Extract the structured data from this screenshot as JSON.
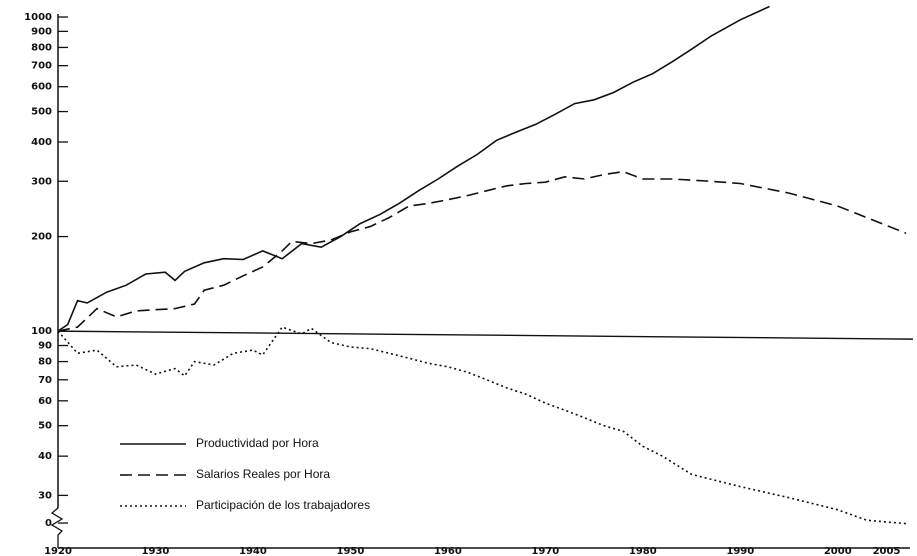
{
  "chart_data": {
    "type": "line",
    "log_y": true,
    "xlim": [
      1920,
      2007
    ],
    "ylim": [
      20.4,
      1000
    ],
    "xticks": [
      1920,
      1930,
      1940,
      1950,
      1960,
      1970,
      1980,
      1990,
      2000,
      2005
    ],
    "yticks": [
      1000,
      900,
      800,
      700,
      600,
      500,
      400,
      300,
      200,
      100,
      90,
      80,
      70,
      60,
      50,
      40,
      30,
      {
        "value": 24.5,
        "label": "0"
      }
    ],
    "reference_value": 100,
    "series": [
      {
        "name": "Productividad por Hora",
        "color": "#111111",
        "style": "solid",
        "x": [
          1920,
          1921,
          1922,
          1923,
          1925,
          1927,
          1929,
          1931,
          1932,
          1933,
          1935,
          1937,
          1939,
          1941,
          1942,
          1943,
          1945,
          1947,
          1949,
          1951,
          1953,
          1955,
          1957,
          1959,
          1961,
          1963,
          1965,
          1967,
          1969,
          1971,
          1973,
          1975,
          1977,
          1979,
          1981,
          1983,
          1985,
          1987,
          1990,
          1993
        ],
        "values": [
          100,
          105,
          125,
          123,
          133,
          140,
          152,
          154,
          145,
          155,
          165,
          170,
          169,
          180,
          175,
          170,
          190,
          185,
          200,
          220,
          235,
          255,
          280,
          305,
          335,
          365,
          405,
          430,
          455,
          490,
          530,
          545,
          575,
          620,
          660,
          720,
          790,
          870,
          980,
          1080
        ]
      },
      {
        "name": "Salarios Reales por Hora",
        "color": "#111111",
        "style": "dashed",
        "x": [
          1920,
          1922,
          1924,
          1926,
          1928,
          1930,
          1932,
          1934,
          1935,
          1937,
          1939,
          1941,
          1943,
          1944,
          1946,
          1948,
          1950,
          1952,
          1954,
          1956,
          1958,
          1960,
          1962,
          1964,
          1966,
          1968,
          1970,
          1972,
          1974,
          1976,
          1978,
          1980,
          1983,
          1987,
          1990,
          1995,
          2000,
          2007
        ],
        "values": [
          100,
          103,
          118,
          111,
          116,
          117,
          118,
          122,
          135,
          140,
          150,
          160,
          180,
          193,
          190,
          195,
          207,
          215,
          230,
          250,
          255,
          262,
          270,
          280,
          290,
          295,
          298,
          310,
          305,
          315,
          322,
          305,
          305,
          300,
          295,
          275,
          250,
          205
        ]
      },
      {
        "name": "Participación de los trabajadores",
        "color": "#111111",
        "style": "dotted",
        "x": [
          1920,
          1922,
          1924,
          1926,
          1928,
          1930,
          1932,
          1933,
          1934,
          1936,
          1938,
          1940,
          1941,
          1943,
          1945,
          1946,
          1948,
          1950,
          1952,
          1954,
          1956,
          1958,
          1960,
          1962,
          1964,
          1966,
          1968,
          1970,
          1972,
          1974,
          1976,
          1978,
          1980,
          1982,
          1985,
          1990,
          1995,
          2000,
          2003,
          2007
        ],
        "values": [
          100,
          85,
          87,
          77,
          78,
          73,
          76,
          72,
          80,
          78,
          85,
          87,
          84,
          103,
          98,
          102,
          92,
          89,
          88,
          85,
          82,
          79,
          77,
          74,
          70,
          66,
          63,
          59,
          56,
          53,
          50,
          48,
          43,
          40,
          35,
          32,
          29.5,
          27,
          25,
          24.4
        ]
      }
    ]
  }
}
